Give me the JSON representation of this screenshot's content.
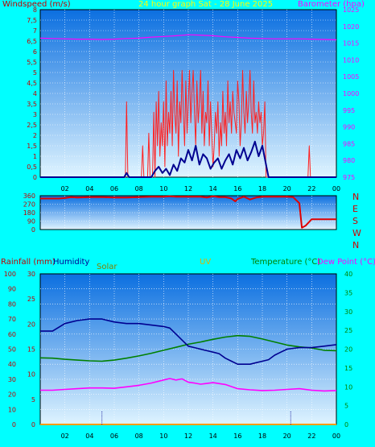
{
  "header": {
    "title": "24 hour graph Sat - 28 June 2025",
    "windspeed_label": "Windspeed (m/s)",
    "barometer_label": "Barometer (hpa)",
    "rainfall_label": "Rainfall (mm)",
    "humidity_label": "Humidity",
    "solar_label": "Solar",
    "uv_label": "UV",
    "temperature_label": "Temperature (°C)",
    "dewpoint_label": "Dew Point (°C)"
  },
  "colors": {
    "background": "#00ffff",
    "plot_top": "#0b6fe0",
    "plot_bottom": "#dff4ff",
    "grid": "#ffffff",
    "title": "#ffff00",
    "left_axis_text": "#c00000",
    "right_axis_text": "#ff00ff",
    "wind_gust": "#ff2020",
    "wind_avg": "#000090",
    "barometer": "#ff00ff",
    "wind_dir": "#e00000",
    "humidity": "#000090",
    "temperature": "#008000",
    "dewpoint": "#ff00ff",
    "rain": "#ff0000",
    "uv": "#ffd000",
    "solar": "#808000"
  },
  "chart_data": [
    {
      "type": "line",
      "title": "24 hour graph Sat - 28 June 2025",
      "x_ticks": [
        "02",
        "04",
        "06",
        "08",
        "10",
        "12",
        "14",
        "16",
        "18",
        "20",
        "22",
        "00"
      ],
      "x_range_hours": [
        0,
        24
      ],
      "ylabel": "Windspeed (m/s)",
      "ylim": [
        0,
        8
      ],
      "y_ticks": [
        "0",
        "0,5",
        "1",
        "1,5",
        "2",
        "2,5",
        "3",
        "3,5",
        "4",
        "4,5",
        "5",
        "5,5",
        "6",
        "6,5",
        "7",
        "7,5",
        "8"
      ],
      "y2label": "Barometer (hpa)",
      "y2lim": [
        975,
        1025
      ],
      "y2_ticks": [
        "975",
        "980",
        "985",
        "990",
        "995",
        "1000",
        "1005",
        "1010",
        "1015",
        "1020",
        "1025"
      ],
      "series": [
        {
          "name": "Wind gust",
          "x": [
            0,
            6.9,
            7.0,
            7.1,
            7.2,
            8.2,
            8.3,
            8.4,
            8.7,
            8.8,
            8.9,
            9.1,
            9.2,
            9.3,
            9.4,
            9.5,
            9.6,
            9.7,
            9.8,
            9.9,
            10.0,
            10.1,
            10.2,
            10.3,
            10.4,
            10.5,
            10.6,
            10.7,
            10.8,
            10.9,
            11.0,
            11.1,
            11.2,
            11.3,
            11.4,
            11.5,
            11.6,
            11.7,
            11.8,
            11.9,
            12.0,
            12.1,
            12.2,
            12.3,
            12.4,
            12.5,
            12.6,
            12.7,
            12.8,
            12.9,
            13.0,
            13.1,
            13.2,
            13.3,
            13.4,
            13.5,
            13.6,
            13.7,
            13.8,
            13.9,
            14.0,
            14.1,
            14.2,
            14.3,
            14.4,
            14.5,
            14.6,
            14.7,
            14.8,
            14.9,
            15.0,
            15.1,
            15.2,
            15.3,
            15.4,
            15.5,
            15.6,
            15.7,
            15.8,
            15.9,
            16.0,
            16.1,
            16.2,
            16.3,
            16.4,
            16.5,
            16.6,
            16.7,
            16.8,
            16.9,
            17.0,
            17.1,
            17.2,
            17.3,
            17.4,
            17.5,
            17.6,
            17.7,
            17.8,
            17.9,
            18.0,
            18.1,
            18.2,
            18.3,
            18.4,
            21.7,
            21.8,
            21.9,
            24
          ],
          "values": [
            0,
            0,
            3.6,
            0,
            0,
            0,
            1.5,
            0,
            0,
            2.1,
            0,
            0,
            3.1,
            0,
            3.6,
            1.5,
            4.1,
            1.0,
            2.6,
            1.5,
            3.6,
            0.5,
            4.6,
            1.5,
            3.1,
            2.1,
            4.1,
            1.5,
            5.1,
            3.1,
            2.1,
            4.6,
            1.0,
            3.6,
            2.6,
            5.1,
            3.1,
            1.5,
            4.6,
            2.1,
            3.6,
            5.1,
            2.6,
            4.1,
            5.1,
            3.1,
            1.5,
            4.6,
            2.6,
            3.6,
            5.1,
            2.1,
            4.1,
            1.5,
            3.1,
            2.6,
            4.6,
            1.5,
            3.6,
            2.1,
            0.5,
            1.5,
            3.1,
            2.1,
            3.6,
            1.0,
            2.6,
            1.5,
            4.1,
            2.1,
            3.1,
            1.5,
            4.6,
            2.6,
            3.6,
            2.1,
            4.1,
            3.1,
            2.6,
            2.1,
            4.6,
            3.6,
            1.5,
            2.6,
            5.1,
            3.1,
            2.1,
            4.1,
            2.6,
            3.6,
            5.1,
            3.1,
            2.1,
            4.6,
            2.6,
            3.1,
            2.1,
            3.6,
            2.6,
            3.1,
            1.5,
            2.1,
            3.6,
            0,
            0,
            0,
            1.5,
            0,
            0
          ]
        },
        {
          "name": "Wind average",
          "x": [
            0,
            6.8,
            7.0,
            7.2,
            7.4,
            9.0,
            9.3,
            9.6,
            9.9,
            10.2,
            10.5,
            10.8,
            11.1,
            11.4,
            11.7,
            12.0,
            12.3,
            12.6,
            12.9,
            13.2,
            13.5,
            13.8,
            14.1,
            14.4,
            14.7,
            15.0,
            15.3,
            15.6,
            15.9,
            16.2,
            16.5,
            16.8,
            17.1,
            17.4,
            17.7,
            18.0,
            18.3,
            18.5,
            24
          ],
          "values": [
            0,
            0,
            0.2,
            0,
            0,
            0,
            0.3,
            0.5,
            0.2,
            0.4,
            0.1,
            0.6,
            0.3,
            0.9,
            0.7,
            1.3,
            0.8,
            1.5,
            0.6,
            1.1,
            0.9,
            0.4,
            0.7,
            0.9,
            0.4,
            0.8,
            1.1,
            0.6,
            1.3,
            0.9,
            1.4,
            0.8,
            1.2,
            1.7,
            1.0,
            1.5,
            0.6,
            0,
            0
          ]
        },
        {
          "name": "Barometer",
          "axis": "y2",
          "x": [
            0,
            1,
            2,
            3,
            4,
            5,
            6,
            7,
            8,
            9,
            10,
            11,
            12,
            13,
            14,
            15,
            16,
            17,
            18,
            19,
            20,
            21,
            22,
            23,
            24
          ],
          "values": [
            1016.5,
            1016.4,
            1016.3,
            1016.2,
            1016.2,
            1016.1,
            1016.2,
            1016.4,
            1016.5,
            1016.8,
            1017.0,
            1017.2,
            1017.5,
            1017.4,
            1017.2,
            1016.9,
            1016.7,
            1016.5,
            1016.4,
            1016.3,
            1016.3,
            1016.3,
            1016.2,
            1016.1,
            1016.0
          ]
        }
      ]
    },
    {
      "type": "line",
      "ylabel": "Wind direction",
      "y_ticks": [
        "0",
        "90",
        "180",
        "270",
        "360"
      ],
      "ylim": [
        0,
        360
      ],
      "direction_labels": [
        "N",
        "W",
        "S",
        "E",
        "N"
      ],
      "x_range_hours": [
        0,
        24
      ],
      "series": [
        {
          "name": "Wind direction",
          "x": [
            0,
            1.5,
            2.0,
            2.5,
            3.0,
            4.0,
            5.0,
            6.0,
            7.0,
            8.0,
            9.0,
            10.0,
            10.5,
            11.0,
            12.0,
            13.0,
            13.5,
            14.0,
            14.5,
            15.0,
            15.5,
            15.8,
            16.0,
            16.5,
            17.0,
            17.5,
            18.0,
            19.0,
            20.0,
            20.5,
            21.0,
            21.2,
            21.5,
            22.0,
            24
          ],
          "values": [
            330,
            330,
            335,
            345,
            340,
            345,
            345,
            340,
            340,
            345,
            350,
            350,
            355,
            350,
            350,
            350,
            340,
            355,
            345,
            345,
            330,
            300,
            325,
            350,
            320,
            340,
            350,
            350,
            350,
            345,
            280,
            20,
            40,
            110,
            110
          ]
        }
      ]
    },
    {
      "type": "line",
      "x_ticks": [
        "02",
        "04",
        "06",
        "08",
        "10",
        "12",
        "14",
        "16",
        "18",
        "20",
        "22",
        "00"
      ],
      "x_range_hours": [
        0,
        24
      ],
      "ylabel": "Rainfall (mm) / Humidity",
      "ylim": [
        0,
        100
      ],
      "y_ticks": [
        "0",
        "10",
        "20",
        "30",
        "40",
        "50",
        "60",
        "70",
        "80",
        "90",
        "100"
      ],
      "y1b_ticks": [
        "0",
        "5",
        "10",
        "15",
        "20",
        "25",
        "30"
      ],
      "y2label": "Temperature (°C) / Dew Point (°C)",
      "y2lim": [
        0,
        40
      ],
      "y2_ticks": [
        "0",
        "5",
        "10",
        "15",
        "20",
        "25",
        "30",
        "35",
        "40"
      ],
      "uv_markers_hours": [
        5.0,
        20.3
      ],
      "series": [
        {
          "name": "Humidity",
          "x": [
            0,
            1,
            2,
            3,
            4,
            5,
            6,
            7,
            8,
            9,
            10,
            10.5,
            11,
            11.5,
            12,
            12.5,
            13,
            13.5,
            14,
            14.5,
            15,
            15.5,
            16,
            16.5,
            17,
            17.5,
            18,
            18.5,
            19,
            19.5,
            20,
            21,
            22,
            23,
            24
          ],
          "values": [
            62,
            62,
            67,
            69,
            70,
            70,
            68,
            67,
            67,
            66,
            65,
            64,
            60,
            56,
            52,
            51,
            50,
            49,
            48,
            47,
            44,
            42,
            40,
            40,
            40,
            41,
            42,
            43,
            46,
            48,
            50,
            51,
            51,
            52,
            53
          ]
        },
        {
          "name": "Temperature",
          "axis": "y2",
          "x": [
            0,
            1,
            2,
            3,
            4,
            5,
            6,
            7,
            8,
            9,
            10,
            11,
            12,
            13,
            14,
            15,
            16,
            17,
            18,
            19,
            20,
            21,
            22,
            23,
            24
          ],
          "values": [
            17.7,
            17.6,
            17.3,
            17.1,
            16.9,
            16.8,
            17.1,
            17.6,
            18.2,
            18.9,
            19.7,
            20.5,
            21.3,
            21.9,
            22.6,
            23.2,
            23.6,
            23.4,
            22.7,
            21.9,
            21.1,
            20.6,
            20.3,
            19.7,
            19.6
          ]
        },
        {
          "name": "Dew Point",
          "axis": "y2",
          "x": [
            0,
            1,
            2,
            3,
            4,
            5,
            6,
            7,
            8,
            9,
            10,
            10.5,
            11,
            11.5,
            12,
            12.5,
            13,
            14,
            15,
            16,
            17,
            18,
            19,
            20,
            21,
            22,
            23,
            24
          ],
          "values": [
            9.1,
            9.1,
            9.3,
            9.5,
            9.7,
            9.7,
            9.6,
            10.0,
            10.4,
            11.0,
            11.8,
            12.2,
            11.8,
            12.1,
            11.2,
            11.0,
            10.7,
            11.1,
            10.6,
            9.5,
            9.2,
            9.0,
            9.1,
            9.3,
            9.5,
            9.1,
            8.9,
            9.0
          ]
        },
        {
          "name": "Rainfall",
          "x": [
            0,
            24
          ],
          "values": [
            0,
            0
          ]
        },
        {
          "name": "UV",
          "x": [
            0,
            24
          ],
          "values": [
            0,
            0
          ]
        }
      ]
    }
  ]
}
